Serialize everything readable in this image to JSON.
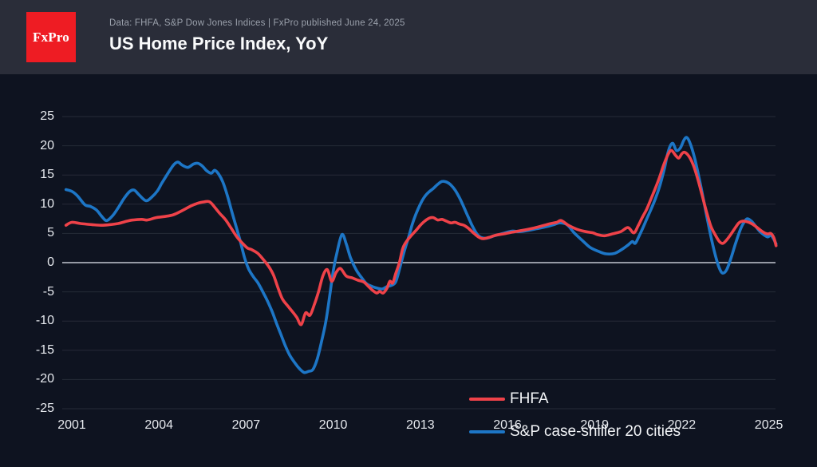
{
  "header": {
    "logo_text": "FxPro",
    "subtitle": "Data: FHFA, S&P Dow Jones Indices | FxPro published June 24, 2025",
    "title": "US Home Price Index, YoY"
  },
  "colors": {
    "page_bg": "#0e1320",
    "header_bg": "#2a2d39",
    "logo_bg": "#ee1c23",
    "fhfa_line": "#ef4249",
    "case_shiller_line": "#1d76c6",
    "gridline": "#262b37",
    "zero_line": "#c3c8d1",
    "axis_text": "#e6e9ee",
    "title_text": "#fafbfc",
    "subtitle_text": "#9aa0ab"
  },
  "chart_data": {
    "type": "line",
    "title": "US Home Price Index, YoY",
    "xlabel": "",
    "ylabel": "",
    "x_axis": {
      "ticks": [
        2001,
        2004,
        2007,
        2010,
        2013,
        2016,
        2019,
        2022,
        2025
      ],
      "range": [
        2000.7,
        2025.3
      ]
    },
    "y_axis": {
      "ticks": [
        25,
        20,
        15,
        10,
        5,
        0,
        -5,
        -10,
        -15,
        -20,
        -25
      ],
      "range": [
        -25,
        25
      ]
    },
    "grid": "horizontal",
    "zero_line": true,
    "legend_position": "inside-right",
    "series": [
      {
        "name": "FHFA",
        "color": "#ef4249",
        "points": [
          [
            2000.8,
            6.4
          ],
          [
            2001.0,
            6.9
          ],
          [
            2001.3,
            6.7
          ],
          [
            2001.7,
            6.5
          ],
          [
            2002.0,
            6.4
          ],
          [
            2002.3,
            6.5
          ],
          [
            2002.6,
            6.7
          ],
          [
            2002.9,
            7.1
          ],
          [
            2003.1,
            7.3
          ],
          [
            2003.4,
            7.4
          ],
          [
            2003.6,
            7.3
          ],
          [
            2003.9,
            7.7
          ],
          [
            2004.2,
            7.9
          ],
          [
            2004.5,
            8.2
          ],
          [
            2004.8,
            8.9
          ],
          [
            2005.1,
            9.7
          ],
          [
            2005.3,
            10.1
          ],
          [
            2005.55,
            10.4
          ],
          [
            2005.75,
            10.4
          ],
          [
            2005.95,
            9.3
          ],
          [
            2006.1,
            8.4
          ],
          [
            2006.3,
            7.3
          ],
          [
            2006.5,
            5.8
          ],
          [
            2006.7,
            4.3
          ],
          [
            2006.9,
            3.2
          ],
          [
            2007.05,
            2.5
          ],
          [
            2007.2,
            2.2
          ],
          [
            2007.4,
            1.6
          ],
          [
            2007.6,
            0.5
          ],
          [
            2007.8,
            -0.8
          ],
          [
            2007.95,
            -2.2
          ],
          [
            2008.1,
            -4.3
          ],
          [
            2008.25,
            -6.2
          ],
          [
            2008.45,
            -7.5
          ],
          [
            2008.6,
            -8.4
          ],
          [
            2008.75,
            -9.4
          ],
          [
            2008.9,
            -10.6
          ],
          [
            2009.05,
            -8.6
          ],
          [
            2009.2,
            -9.0
          ],
          [
            2009.35,
            -7.2
          ],
          [
            2009.5,
            -4.9
          ],
          [
            2009.65,
            -2.2
          ],
          [
            2009.8,
            -1.2
          ],
          [
            2009.95,
            -3.2
          ],
          [
            2010.1,
            -1.7
          ],
          [
            2010.25,
            -1.0
          ],
          [
            2010.45,
            -2.3
          ],
          [
            2010.65,
            -2.6
          ],
          [
            2010.85,
            -3.0
          ],
          [
            2011.05,
            -3.3
          ],
          [
            2011.2,
            -4.0
          ],
          [
            2011.35,
            -4.7
          ],
          [
            2011.5,
            -5.2
          ],
          [
            2011.6,
            -4.9
          ],
          [
            2011.72,
            -5.2
          ],
          [
            2011.85,
            -4.4
          ],
          [
            2011.95,
            -3.2
          ],
          [
            2012.05,
            -3.5
          ],
          [
            2012.15,
            -1.9
          ],
          [
            2012.28,
            0.0
          ],
          [
            2012.4,
            2.5
          ],
          [
            2012.55,
            3.8
          ],
          [
            2012.7,
            4.7
          ],
          [
            2012.85,
            5.5
          ],
          [
            2013.0,
            6.4
          ],
          [
            2013.15,
            7.1
          ],
          [
            2013.3,
            7.6
          ],
          [
            2013.45,
            7.7
          ],
          [
            2013.6,
            7.3
          ],
          [
            2013.75,
            7.4
          ],
          [
            2013.9,
            7.1
          ],
          [
            2014.05,
            6.8
          ],
          [
            2014.2,
            6.9
          ],
          [
            2014.35,
            6.6
          ],
          [
            2014.5,
            6.4
          ],
          [
            2014.65,
            5.9
          ],
          [
            2014.85,
            5.0
          ],
          [
            2015.0,
            4.4
          ],
          [
            2015.15,
            4.1
          ],
          [
            2015.35,
            4.3
          ],
          [
            2015.6,
            4.7
          ],
          [
            2015.85,
            4.9
          ],
          [
            2016.15,
            5.2
          ],
          [
            2016.5,
            5.5
          ],
          [
            2016.9,
            5.9
          ],
          [
            2017.2,
            6.3
          ],
          [
            2017.5,
            6.7
          ],
          [
            2017.7,
            6.9
          ],
          [
            2017.85,
            7.2
          ],
          [
            2018.1,
            6.4
          ],
          [
            2018.4,
            5.7
          ],
          [
            2018.7,
            5.3
          ],
          [
            2018.95,
            5.1
          ],
          [
            2019.1,
            4.8
          ],
          [
            2019.35,
            4.6
          ],
          [
            2019.6,
            4.9
          ],
          [
            2019.9,
            5.3
          ],
          [
            2020.15,
            6.0
          ],
          [
            2020.35,
            5.1
          ],
          [
            2020.5,
            6.3
          ],
          [
            2020.65,
            7.8
          ],
          [
            2020.8,
            9.2
          ],
          [
            2020.95,
            11.0
          ],
          [
            2021.1,
            12.8
          ],
          [
            2021.25,
            14.8
          ],
          [
            2021.4,
            17.0
          ],
          [
            2021.55,
            18.7
          ],
          [
            2021.65,
            19.2
          ],
          [
            2021.8,
            18.3
          ],
          [
            2021.9,
            17.9
          ],
          [
            2022.0,
            18.6
          ],
          [
            2022.1,
            18.9
          ],
          [
            2022.25,
            18.2
          ],
          [
            2022.4,
            16.7
          ],
          [
            2022.55,
            14.4
          ],
          [
            2022.7,
            11.6
          ],
          [
            2022.85,
            8.8
          ],
          [
            2023.0,
            6.3
          ],
          [
            2023.15,
            4.8
          ],
          [
            2023.3,
            3.6
          ],
          [
            2023.42,
            3.3
          ],
          [
            2023.55,
            3.9
          ],
          [
            2023.7,
            4.9
          ],
          [
            2023.85,
            6.0
          ],
          [
            2023.97,
            6.8
          ],
          [
            2024.1,
            7.1
          ],
          [
            2024.25,
            7.0
          ],
          [
            2024.4,
            6.7
          ],
          [
            2024.55,
            6.2
          ],
          [
            2024.7,
            5.6
          ],
          [
            2024.85,
            5.1
          ],
          [
            2024.97,
            4.9
          ],
          [
            2025.07,
            5.0
          ],
          [
            2025.17,
            4.3
          ],
          [
            2025.25,
            2.9
          ]
        ]
      },
      {
        "name": "S&P case-shiller 20 cities",
        "color": "#1d76c6",
        "points": [
          [
            2000.8,
            12.5
          ],
          [
            2001.0,
            12.2
          ],
          [
            2001.2,
            11.4
          ],
          [
            2001.45,
            9.9
          ],
          [
            2001.65,
            9.6
          ],
          [
            2001.85,
            9.0
          ],
          [
            2002.05,
            7.8
          ],
          [
            2002.2,
            7.2
          ],
          [
            2002.4,
            8.0
          ],
          [
            2002.6,
            9.4
          ],
          [
            2002.8,
            11.0
          ],
          [
            2003.0,
            12.2
          ],
          [
            2003.15,
            12.4
          ],
          [
            2003.3,
            11.7
          ],
          [
            2003.55,
            10.6
          ],
          [
            2003.75,
            11.2
          ],
          [
            2003.95,
            12.3
          ],
          [
            2004.1,
            13.6
          ],
          [
            2004.3,
            15.2
          ],
          [
            2004.5,
            16.7
          ],
          [
            2004.65,
            17.2
          ],
          [
            2004.8,
            16.7
          ],
          [
            2005.0,
            16.3
          ],
          [
            2005.2,
            16.9
          ],
          [
            2005.35,
            17.0
          ],
          [
            2005.5,
            16.5
          ],
          [
            2005.65,
            15.7
          ],
          [
            2005.8,
            15.3
          ],
          [
            2005.92,
            15.8
          ],
          [
            2006.05,
            15.2
          ],
          [
            2006.2,
            13.8
          ],
          [
            2006.35,
            11.6
          ],
          [
            2006.5,
            8.9
          ],
          [
            2006.65,
            6.3
          ],
          [
            2006.8,
            3.7
          ],
          [
            2006.95,
            0.8
          ],
          [
            2007.1,
            -1.2
          ],
          [
            2007.25,
            -2.4
          ],
          [
            2007.4,
            -3.4
          ],
          [
            2007.6,
            -5.2
          ],
          [
            2007.75,
            -6.7
          ],
          [
            2007.9,
            -8.4
          ],
          [
            2008.05,
            -10.4
          ],
          [
            2008.2,
            -12.3
          ],
          [
            2008.35,
            -14.2
          ],
          [
            2008.5,
            -15.8
          ],
          [
            2008.7,
            -17.3
          ],
          [
            2008.85,
            -18.2
          ],
          [
            2009.0,
            -18.8
          ],
          [
            2009.15,
            -18.6
          ],
          [
            2009.3,
            -18.3
          ],
          [
            2009.45,
            -16.5
          ],
          [
            2009.6,
            -13.5
          ],
          [
            2009.75,
            -10.0
          ],
          [
            2009.87,
            -6.0
          ],
          [
            2010.0,
            -1.5
          ],
          [
            2010.12,
            1.5
          ],
          [
            2010.3,
            4.8
          ],
          [
            2010.45,
            3.2
          ],
          [
            2010.6,
            0.8
          ],
          [
            2010.8,
            -1.3
          ],
          [
            2011.0,
            -2.7
          ],
          [
            2011.15,
            -3.6
          ],
          [
            2011.35,
            -4.1
          ],
          [
            2011.55,
            -4.4
          ],
          [
            2011.7,
            -4.5
          ],
          [
            2011.85,
            -4.1
          ],
          [
            2012.0,
            -3.9
          ],
          [
            2012.15,
            -3.3
          ],
          [
            2012.3,
            -0.8
          ],
          [
            2012.45,
            2.0
          ],
          [
            2012.6,
            4.4
          ],
          [
            2012.72,
            6.5
          ],
          [
            2012.85,
            8.3
          ],
          [
            2013.0,
            10.0
          ],
          [
            2013.15,
            11.3
          ],
          [
            2013.3,
            12.1
          ],
          [
            2013.45,
            12.7
          ],
          [
            2013.6,
            13.4
          ],
          [
            2013.75,
            13.9
          ],
          [
            2013.9,
            13.8
          ],
          [
            2014.05,
            13.3
          ],
          [
            2014.2,
            12.4
          ],
          [
            2014.35,
            11.1
          ],
          [
            2014.5,
            9.5
          ],
          [
            2014.65,
            7.8
          ],
          [
            2014.8,
            6.2
          ],
          [
            2014.95,
            4.9
          ],
          [
            2015.1,
            4.3
          ],
          [
            2015.3,
            4.2
          ],
          [
            2015.55,
            4.6
          ],
          [
            2015.85,
            5.0
          ],
          [
            2016.15,
            5.4
          ],
          [
            2016.4,
            5.3
          ],
          [
            2016.7,
            5.5
          ],
          [
            2017.0,
            5.8
          ],
          [
            2017.3,
            6.1
          ],
          [
            2017.6,
            6.5
          ],
          [
            2017.8,
            6.8
          ],
          [
            2018.05,
            6.5
          ],
          [
            2018.3,
            5.1
          ],
          [
            2018.6,
            3.7
          ],
          [
            2018.85,
            2.6
          ],
          [
            2019.15,
            1.9
          ],
          [
            2019.4,
            1.5
          ],
          [
            2019.7,
            1.6
          ],
          [
            2019.95,
            2.3
          ],
          [
            2020.15,
            3.0
          ],
          [
            2020.3,
            3.6
          ],
          [
            2020.4,
            3.3
          ],
          [
            2020.52,
            4.4
          ],
          [
            2020.65,
            5.8
          ],
          [
            2020.8,
            7.5
          ],
          [
            2020.95,
            9.2
          ],
          [
            2021.1,
            11.0
          ],
          [
            2021.25,
            13.2
          ],
          [
            2021.4,
            16.0
          ],
          [
            2021.5,
            18.3
          ],
          [
            2021.6,
            19.9
          ],
          [
            2021.7,
            20.4
          ],
          [
            2021.82,
            19.2
          ],
          [
            2021.95,
            19.6
          ],
          [
            2022.08,
            21.0
          ],
          [
            2022.18,
            21.4
          ],
          [
            2022.3,
            20.3
          ],
          [
            2022.45,
            17.8
          ],
          [
            2022.6,
            14.5
          ],
          [
            2022.75,
            10.8
          ],
          [
            2022.9,
            7.0
          ],
          [
            2023.05,
            3.5
          ],
          [
            2023.2,
            0.5
          ],
          [
            2023.32,
            -1.2
          ],
          [
            2023.42,
            -1.8
          ],
          [
            2023.55,
            -1.2
          ],
          [
            2023.7,
            0.8
          ],
          [
            2023.85,
            3.2
          ],
          [
            2024.0,
            5.4
          ],
          [
            2024.12,
            6.7
          ],
          [
            2024.25,
            7.5
          ],
          [
            2024.4,
            7.1
          ],
          [
            2024.55,
            6.2
          ],
          [
            2024.7,
            5.3
          ],
          [
            2024.85,
            4.7
          ],
          [
            2024.97,
            4.4
          ],
          [
            2025.07,
            4.7
          ],
          [
            2025.17,
            4.0
          ],
          [
            2025.25,
            3.2
          ]
        ]
      }
    ]
  }
}
